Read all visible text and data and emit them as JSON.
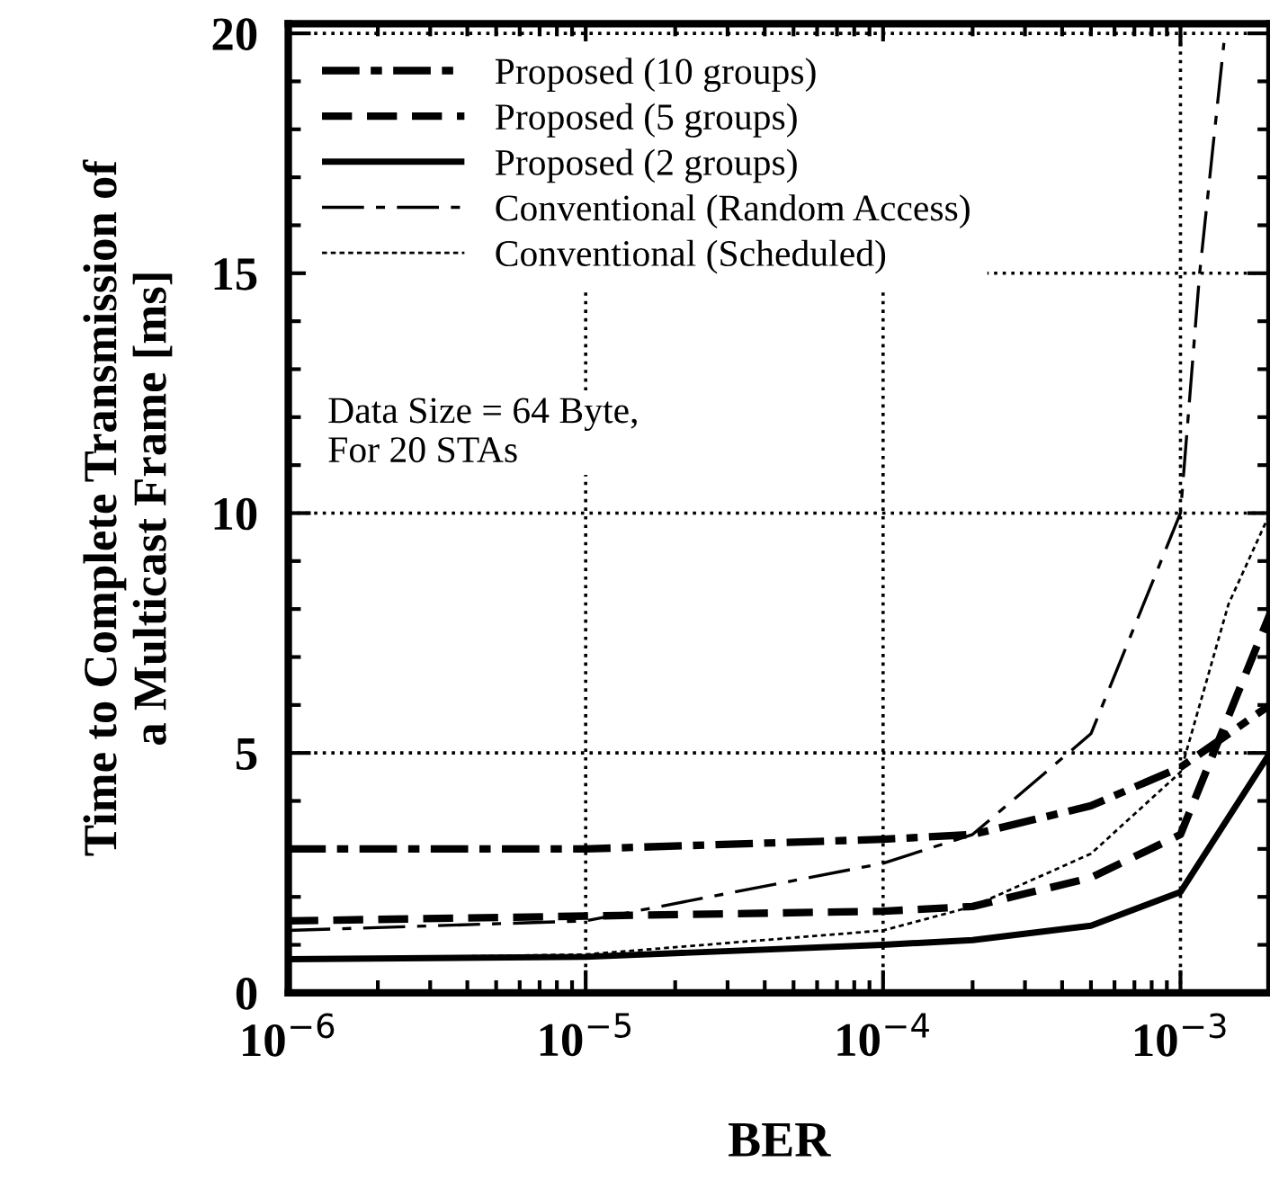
{
  "chart_data": {
    "type": "line",
    "xlabel": "BER",
    "ylabel": "Time to Complete Transmission of\na Multicast Frame [ms]",
    "log": "x",
    "xlim": [
      1e-06,
      0.002
    ],
    "ylim": [
      0,
      20.2
    ],
    "xticks": [
      {
        "value": 1e-06,
        "label": "10$^{−6}$"
      },
      {
        "value": 1e-05,
        "label": "10$^{−5}$"
      },
      {
        "value": 0.0001,
        "label": "10$^{−4}$"
      },
      {
        "value": 0.001,
        "label": "10$^{−3}$"
      }
    ],
    "yticks": [
      0,
      5,
      10,
      15,
      20
    ],
    "grid": true,
    "legend": "top left",
    "marker": "none",
    "annotations": [
      "Data Size = 64 Byte,\nFor 20 STAs"
    ],
    "series": [
      {
        "name": "Proposed (10 groups)",
        "color": "#000000",
        "line_style": "dashdot",
        "x": [
          1e-06,
          1e-05,
          0.0001,
          0.0002,
          0.0005,
          0.001,
          0.002
        ],
        "values": [
          3.0,
          3.0,
          3.2,
          3.3,
          3.9,
          4.7,
          6.0
        ]
      },
      {
        "name": "Proposed (5 groups)",
        "color": "#000000",
        "line_style": "dashed",
        "x": [
          1e-06,
          1e-05,
          0.0001,
          0.0002,
          0.0005,
          0.001,
          0.002
        ],
        "values": [
          1.5,
          1.6,
          1.7,
          1.8,
          2.4,
          3.3,
          7.9
        ]
      },
      {
        "name": "Proposed (2 groups)",
        "color": "#000000",
        "line_style": "solid",
        "x": [
          1e-06,
          1e-05,
          0.0001,
          0.0002,
          0.0005,
          0.001,
          0.002
        ],
        "values": [
          0.7,
          0.75,
          1.0,
          1.1,
          1.4,
          2.1,
          5.0
        ]
      },
      {
        "name": "Conventional (Random Access)",
        "color": "#000000",
        "line_style": "longdashdot",
        "x": [
          1e-06,
          1e-05,
          0.0001,
          0.0002,
          0.0005,
          0.001,
          0.00116,
          0.0014
        ],
        "values": [
          1.3,
          1.5,
          2.7,
          3.3,
          5.4,
          10.0,
          15.0,
          19.8
        ]
      },
      {
        "name": "Conventional (Scheduled)",
        "color": "#000000",
        "line_style": "dotted",
        "x": [
          1e-06,
          1e-05,
          0.0001,
          0.0002,
          0.0005,
          0.001,
          0.00145,
          0.002
        ],
        "values": [
          0.7,
          0.8,
          1.3,
          1.8,
          2.9,
          4.6,
          8.1,
          10.0
        ]
      }
    ]
  }
}
